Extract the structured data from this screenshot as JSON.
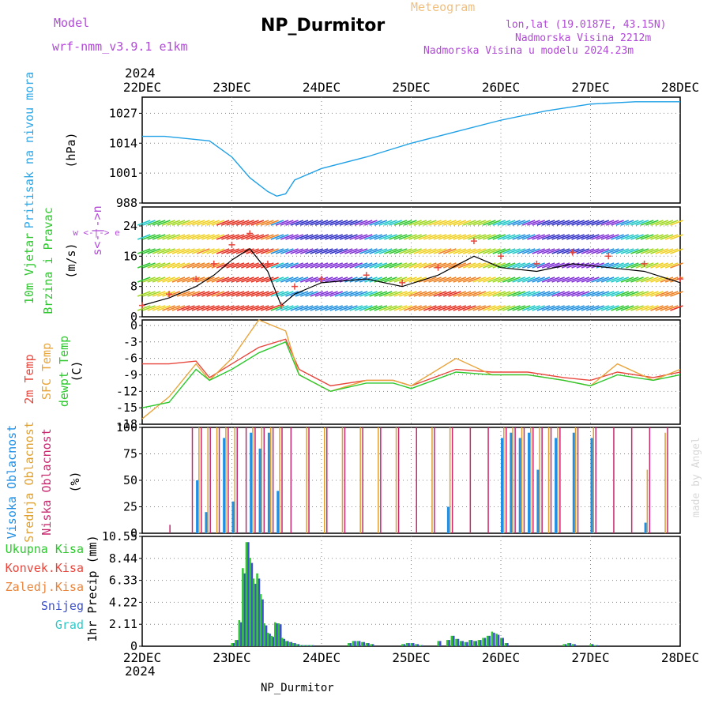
{
  "header": {
    "model_label": "Model",
    "model_name": "wrf-nmm_v3.9.1 e1km",
    "title": "NP_Durmitor",
    "meteogram_label": "Meteogram",
    "coords": "lon,lat (19.0187E, 43.15N)",
    "elevation": "Nadmorska Visina 2212m",
    "model_elevation": "Nadmorska Visina u modelu 2024.23m"
  },
  "footer": {
    "station": "NP_Durmitor",
    "made_by": "made by Angel"
  },
  "time_axis": {
    "year": "2024",
    "labels": [
      "22DEC",
      "23DEC",
      "24DEC",
      "25DEC",
      "26DEC",
      "27DEC",
      "28DEC"
    ]
  },
  "colors": {
    "pressure": "#1fa0e6",
    "temp2m": "#e8463c",
    "sfc_temp": "#e8a53c",
    "dewpt": "#2ec82e",
    "wind_mean": "#000000",
    "wind_gust": "#e8463c",
    "cloud_high": "#1f8fe6",
    "cloud_mid": "#e0a030",
    "cloud_low": "#c8286e",
    "precip_total": "#2ec82e",
    "precip_snow": "#3c50c8"
  },
  "panels": {
    "pressure": {
      "labels": [
        "Pritisak na nivou mora"
      ],
      "unit": "(hPa)",
      "ticks": [
        "988",
        "1001",
        "1014",
        "1027"
      ]
    },
    "wind": {
      "labels": [
        "10m Vjetar",
        "Brzina i Pravac"
      ],
      "unit": "(m/s)",
      "ticks": [
        "0",
        "8",
        "16",
        "24"
      ],
      "compass": "w <-|-> e",
      "compass_vertical": "s<-|->n"
    },
    "temp": {
      "labels": [
        "2m Temp",
        "SFC Temp",
        "dewpt Temp"
      ],
      "unit": "(C)",
      "ticks": [
        "0",
        "-3",
        "-6",
        "-9",
        "-12",
        "-15",
        "-18"
      ]
    },
    "cloud": {
      "labels": [
        "Visoka Oblacnost",
        "Srednja Oblacnost",
        "Niska Oblacnost"
      ],
      "unit": "(%)",
      "ticks": [
        "0",
        "25",
        "50",
        "75",
        "100"
      ]
    },
    "precip": {
      "legend": [
        "Ukupna Kisa",
        "Konvek.Kisa",
        "Zaledj.Kisa",
        "Snijeg",
        "Grad"
      ],
      "unit": "1hr Precip (mm)",
      "ticks": [
        "0",
        "2.11",
        "4.22",
        "6.33",
        "8.44",
        "10.55"
      ]
    }
  },
  "chart_data": [
    {
      "type": "line",
      "title": "Pritisak na nivou mora",
      "ylabel": "(hPa)",
      "ylim": [
        988,
        1034
      ],
      "x": [
        0,
        0.25,
        0.5,
        0.75,
        1.0,
        1.2,
        1.4,
        1.5,
        1.6,
        1.7,
        2.0,
        2.5,
        3.0,
        3.5,
        4.0,
        4.5,
        5.0,
        5.5,
        6.0
      ],
      "series": [
        {
          "values": [
            1017,
            1017,
            1016,
            1015,
            1008,
            999,
            993,
            991,
            992,
            998,
            1003,
            1008,
            1014,
            1019,
            1024,
            1028,
            1031,
            1032,
            1032
          ]
        }
      ]
    },
    {
      "type": "line",
      "title": "10m Vjetar",
      "ylabel": "(m/s)",
      "ylim": [
        0,
        29
      ],
      "x": [
        0,
        0.3,
        0.6,
        0.8,
        1.0,
        1.2,
        1.4,
        1.55,
        1.7,
        2.0,
        2.5,
        2.9,
        3.3,
        3.7,
        4.0,
        4.4,
        4.8,
        5.2,
        5.6,
        6.0
      ],
      "series": [
        {
          "values": [
            3,
            5,
            8,
            11,
            15,
            18,
            12,
            3,
            6,
            9,
            10,
            8,
            11,
            16,
            13,
            12,
            14,
            13,
            12,
            9
          ]
        },
        {
          "values": [
            3,
            6,
            10,
            14,
            19,
            22,
            14,
            3,
            8,
            10,
            11,
            9,
            13,
            20,
            16,
            14,
            17,
            16,
            14,
            10
          ]
        }
      ]
    },
    {
      "type": "line",
      "title": "2m Temp",
      "ylabel": "(C)",
      "ylim": [
        -18,
        1
      ],
      "x": [
        0,
        0.3,
        0.6,
        0.75,
        1.0,
        1.3,
        1.6,
        1.75,
        2.1,
        2.5,
        2.8,
        3.0,
        3.5,
        3.9,
        4.3,
        4.7,
        5.0,
        5.3,
        5.7,
        6.0
      ],
      "series": [
        {
          "name": "2m Temp",
          "values": [
            -7,
            -7,
            -6.5,
            -9.5,
            -7,
            -4,
            -2.5,
            -8,
            -11,
            -10,
            -10,
            -11,
            -8,
            -8.5,
            -8.5,
            -9.5,
            -10,
            -8.5,
            -9.5,
            -8.5
          ]
        },
        {
          "name": "SFC Temp",
          "values": [
            -17,
            -13,
            -7,
            -10,
            -6,
            1,
            -1,
            -9,
            -12,
            -10,
            -10,
            -11,
            -6,
            -9,
            -9,
            -10,
            -11,
            -7,
            -10,
            -8
          ]
        },
        {
          "name": "dewpt Temp",
          "values": [
            -15,
            -14,
            -8,
            -10,
            -8,
            -5,
            -3,
            -9,
            -12,
            -10.5,
            -10.5,
            -11.5,
            -8.5,
            -9,
            -9,
            -10,
            -11,
            -9,
            -10,
            -9
          ]
        }
      ]
    },
    {
      "type": "bar",
      "title": "Oblacnost",
      "ylabel": "(%)",
      "ylim": [
        0,
        100
      ],
      "x": [
        0.0,
        0.25,
        0.5,
        0.6,
        0.7,
        0.8,
        0.9,
        1.0,
        1.1,
        1.2,
        1.3,
        1.4,
        1.5,
        1.6,
        1.8,
        2.0,
        2.2,
        2.4,
        2.6,
        2.8,
        3.0,
        3.2,
        3.4,
        3.6,
        3.8,
        4.0,
        4.1,
        4.2,
        4.3,
        4.4,
        4.5,
        4.6,
        4.8,
        5.0,
        5.2,
        5.4,
        5.6,
        5.8
      ],
      "series": [
        {
          "name": "Visoka Oblacnost",
          "values": [
            0,
            0,
            0,
            50,
            20,
            0,
            90,
            30,
            0,
            95,
            80,
            95,
            40,
            0,
            0,
            0,
            0,
            0,
            0,
            0,
            0,
            0,
            25,
            0,
            0,
            90,
            95,
            90,
            95,
            60,
            0,
            90,
            95,
            90,
            0,
            0,
            10,
            0
          ]
        },
        {
          "name": "Srednja Oblacnost",
          "values": [
            0,
            0,
            0,
            100,
            100,
            100,
            100,
            100,
            0,
            100,
            100,
            100,
            100,
            0,
            100,
            100,
            100,
            100,
            100,
            100,
            0,
            100,
            100,
            0,
            0,
            100,
            100,
            100,
            100,
            100,
            100,
            100,
            100,
            100,
            0,
            0,
            60,
            95
          ]
        },
        {
          "name": "Niska Oblacnost",
          "values": [
            0,
            8,
            100,
            100,
            100,
            100,
            100,
            100,
            100,
            100,
            100,
            100,
            100,
            100,
            100,
            100,
            100,
            100,
            100,
            100,
            100,
            100,
            100,
            100,
            100,
            100,
            100,
            100,
            100,
            100,
            100,
            100,
            100,
            100,
            100,
            100,
            100,
            100
          ]
        }
      ]
    },
    {
      "type": "bar",
      "title": "1hr Precip",
      "ylabel": "1hr Precip (mm)",
      "ylim": [
        0,
        10.55
      ],
      "x": [
        1.0,
        1.04,
        1.08,
        1.12,
        1.16,
        1.2,
        1.24,
        1.28,
        1.32,
        1.36,
        1.4,
        1.44,
        1.48,
        1.52,
        1.56,
        1.6,
        1.64,
        1.68,
        1.72,
        1.76,
        1.8,
        1.84,
        1.88,
        2.3,
        2.35,
        2.4,
        2.45,
        2.5,
        2.55,
        2.9,
        2.95,
        3.0,
        3.05,
        3.1,
        3.3,
        3.4,
        3.45,
        3.5,
        3.55,
        3.6,
        3.65,
        3.7,
        3.75,
        3.8,
        3.85,
        3.9,
        3.95,
        4.0,
        4.05,
        4.7,
        4.75,
        4.8,
        5.0,
        5.05
      ],
      "series": [
        {
          "name": "Ukupna Kisa",
          "values": [
            0.3,
            0.6,
            2.5,
            7.5,
            10.0,
            8.5,
            6.5,
            7.0,
            5.0,
            2.2,
            1.3,
            1.0,
            2.3,
            2.2,
            0.8,
            0.5,
            0.4,
            0.3,
            0.2,
            0.1,
            0.1,
            0.1,
            0.1,
            0.3,
            0.5,
            0.5,
            0.4,
            0.3,
            0.2,
            0.2,
            0.3,
            0.3,
            0.2,
            0.1,
            0.5,
            0.6,
            1.0,
            0.7,
            0.5,
            0.4,
            0.6,
            0.5,
            0.6,
            0.8,
            1.0,
            1.4,
            1.2,
            0.8,
            0.3,
            0.2,
            0.3,
            0.2,
            0.2,
            0.1
          ]
        },
        {
          "name": "Snijeg",
          "values": [
            0.3,
            0.6,
            2.3,
            7.0,
            10.0,
            8.0,
            6.0,
            6.5,
            4.5,
            2.0,
            1.2,
            0.9,
            2.2,
            2.1,
            0.7,
            0.5,
            0.4,
            0.3,
            0.2,
            0.1,
            0.1,
            0.1,
            0.1,
            0.3,
            0.5,
            0.5,
            0.4,
            0.3,
            0.2,
            0.2,
            0.3,
            0.3,
            0.2,
            0.1,
            0.5,
            0.6,
            1.0,
            0.7,
            0.5,
            0.4,
            0.6,
            0.5,
            0.6,
            0.8,
            1.0,
            1.3,
            1.1,
            0.8,
            0.3,
            0.2,
            0.3,
            0.2,
            0.2,
            0.1
          ]
        }
      ]
    }
  ]
}
